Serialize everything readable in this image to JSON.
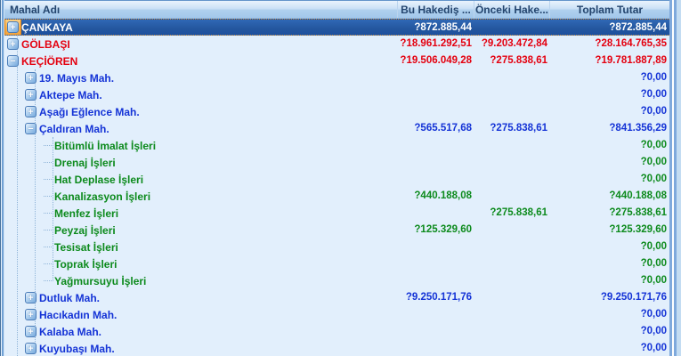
{
  "grid": {
    "columns": [
      {
        "label": "Mahal Adı"
      },
      {
        "label": "Bu Hakediş ..."
      },
      {
        "label": "Önceki Hake..."
      },
      {
        "label": "Toplam Tutar"
      }
    ],
    "rows": [
      {
        "name": "ÇANKAYA",
        "level": 1,
        "toggle": "expand",
        "selected": true,
        "color": "white",
        "current": "?872.885,44",
        "previous": "",
        "total": "?872.885,44"
      },
      {
        "name": "GÖLBAŞI",
        "level": 1,
        "toggle": "expand",
        "selected": false,
        "color": "red",
        "current": "?18.961.292,51",
        "previous": "?9.203.472,84",
        "total": "?28.164.765,35"
      },
      {
        "name": "KEÇİÖREN",
        "level": 1,
        "toggle": "collapse",
        "selected": false,
        "color": "red",
        "current": "?19.506.049,28",
        "previous": "?275.838,61",
        "total": "?19.781.887,89"
      },
      {
        "name": "19. Mayıs Mah.",
        "level": 2,
        "toggle": "expand",
        "selected": false,
        "color": "blue",
        "current": "",
        "previous": "",
        "total": "?0,00"
      },
      {
        "name": "Aktepe Mah.",
        "level": 2,
        "toggle": "expand",
        "selected": false,
        "color": "blue",
        "current": "",
        "previous": "",
        "total": "?0,00"
      },
      {
        "name": "Aşağı Eğlence Mah.",
        "level": 2,
        "toggle": "expand",
        "selected": false,
        "color": "blue",
        "current": "",
        "previous": "",
        "total": "?0,00"
      },
      {
        "name": "Çaldıran Mah.",
        "level": 2,
        "toggle": "collapse",
        "selected": false,
        "color": "blue",
        "current": "?565.517,68",
        "previous": "?275.838,61",
        "total": "?841.356,29"
      },
      {
        "name": "Bitümlü İmalat İşleri",
        "level": 3,
        "toggle": null,
        "selected": false,
        "color": "green",
        "current": "",
        "previous": "",
        "total": "?0,00"
      },
      {
        "name": "Drenaj İşleri",
        "level": 3,
        "toggle": null,
        "selected": false,
        "color": "green",
        "current": "",
        "previous": "",
        "total": "?0,00"
      },
      {
        "name": "Hat Deplase İşleri",
        "level": 3,
        "toggle": null,
        "selected": false,
        "color": "green",
        "current": "",
        "previous": "",
        "total": "?0,00"
      },
      {
        "name": "Kanalizasyon İşleri",
        "level": 3,
        "toggle": null,
        "selected": false,
        "color": "green",
        "current": "?440.188,08",
        "previous": "",
        "total": "?440.188,08"
      },
      {
        "name": "Menfez İşleri",
        "level": 3,
        "toggle": null,
        "selected": false,
        "color": "green",
        "current": "",
        "previous": "?275.838,61",
        "total": "?275.838,61"
      },
      {
        "name": "Peyzaj İşleri",
        "level": 3,
        "toggle": null,
        "selected": false,
        "color": "green",
        "current": "?125.329,60",
        "previous": "",
        "total": "?125.329,60"
      },
      {
        "name": "Tesisat İşleri",
        "level": 3,
        "toggle": null,
        "selected": false,
        "color": "green",
        "current": "",
        "previous": "",
        "total": "?0,00"
      },
      {
        "name": "Toprak İşleri",
        "level": 3,
        "toggle": null,
        "selected": false,
        "color": "green",
        "current": "",
        "previous": "",
        "total": "?0,00"
      },
      {
        "name": "Yağmursuyu İşleri",
        "level": 3,
        "toggle": null,
        "selected": false,
        "color": "green",
        "current": "",
        "previous": "",
        "total": "?0,00"
      },
      {
        "name": "Dutluk Mah.",
        "level": 2,
        "toggle": "expand",
        "selected": false,
        "color": "blue",
        "current": "?9.250.171,76",
        "previous": "",
        "total": "?9.250.171,76"
      },
      {
        "name": "Hacıkadın Mah.",
        "level": 2,
        "toggle": "expand",
        "selected": false,
        "color": "blue",
        "current": "",
        "previous": "",
        "total": "?0,00"
      },
      {
        "name": "Kalaba Mah.",
        "level": 2,
        "toggle": "expand",
        "selected": false,
        "color": "blue",
        "current": "",
        "previous": "",
        "total": "?0,00"
      },
      {
        "name": "Kuyubaşı Mah.",
        "level": 2,
        "toggle": "expand",
        "selected": false,
        "color": "blue",
        "current": "",
        "previous": "",
        "total": "?0,00"
      }
    ]
  },
  "icons": {
    "expand": "+",
    "collapse": "−"
  },
  "colors": {
    "background": "#E2EFFC",
    "header_text": "#24456E",
    "level1_text": "#E4000F",
    "level2_text": "#1433D6",
    "level3_text": "#0C8A1C",
    "selected_row_bg": "#24579F",
    "selected_row_text": "#FFFFFF",
    "focus_accent_orange": "#F2A23C",
    "tree_line": "#8FB4D8"
  }
}
